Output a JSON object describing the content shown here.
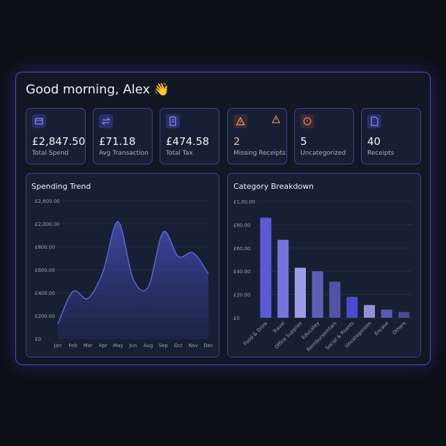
{
  "greeting": "Good morning, Alex 👋",
  "stats": [
    {
      "value": "£2,847.50",
      "label": "Total Spend"
    },
    {
      "value": "£71.18",
      "label": "Avg Transaction"
    },
    {
      "value": "£474.58",
      "label": "Total Tax"
    },
    {
      "value": "2",
      "label": "Missing Receipts"
    },
    {
      "value": "5",
      "label": "Uncategorized"
    },
    {
      "value": "40",
      "label": "Receipts"
    }
  ],
  "chart_data": [
    {
      "type": "area",
      "title": "Spending Trend",
      "color": "#5c60d8",
      "categories": [
        "Jan",
        "Feb",
        "Mar",
        "Apr",
        "May",
        "Jun",
        "Aug",
        "Sep",
        "Oct",
        "Nov",
        "Dec"
      ],
      "values": [
        127,
        410,
        350,
        582,
        2073,
        521,
        448,
        1564,
        715,
        745,
        564
      ],
      "ylim": [
        0,
        2800
      ],
      "yticks": [
        {
          "value": 2800,
          "label": "£2,800.00"
        },
        {
          "value": 2000,
          "label": "£2,000.00"
        },
        {
          "value": 800,
          "label": "£800.00"
        },
        {
          "value": 600,
          "label": "£600.00"
        },
        {
          "value": 400,
          "label": "£400.00"
        },
        {
          "value": 200,
          "label": "£200.00"
        },
        {
          "value": 0,
          "label": "£0"
        }
      ],
      "grid": true
    },
    {
      "type": "bar",
      "title": "Category Breakdown",
      "categories": [
        "Food & Drink",
        "Travel",
        "Office Supplies",
        "Educatey",
        "Reimbursemtars",
        "Social & Rsants",
        "Uncategorizes",
        "Encase",
        "Others"
      ],
      "values": [
        86,
        67,
        43,
        40,
        31,
        18,
        11,
        7,
        5
      ],
      "colors": [
        "#5b5bd8",
        "#7474dc",
        "#9d9de8",
        "#5e5fb4",
        "#5252a6",
        "#4a4ad2",
        "#9292da",
        "#5a5bb0",
        "#4a4b92"
      ],
      "ylim": [
        0,
        100
      ],
      "yticks": [
        {
          "value": 100,
          "label": "£1,00.00"
        },
        {
          "value": 80,
          "label": "£80.00"
        },
        {
          "value": 60,
          "label": "£60.00"
        },
        {
          "value": 40,
          "label": "£40.00"
        },
        {
          "value": 20,
          "label": "£20.00"
        },
        {
          "value": 0,
          "label": "£0"
        }
      ],
      "grid": true
    }
  ]
}
